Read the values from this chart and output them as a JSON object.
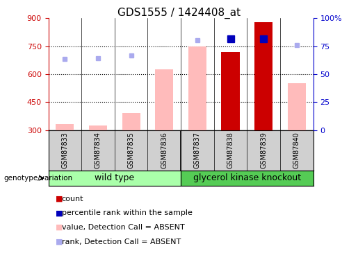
{
  "title": "GDS1555 / 1424408_at",
  "samples": [
    "GSM87833",
    "GSM87834",
    "GSM87835",
    "GSM87836",
    "GSM87837",
    "GSM87838",
    "GSM87839",
    "GSM87840"
  ],
  "bar_values": [
    330,
    325,
    390,
    625,
    750,
    720,
    880,
    550
  ],
  "bar_colors": [
    "#ffbbbb",
    "#ffbbbb",
    "#ffbbbb",
    "#ffbbbb",
    "#ffbbbb",
    "#cc0000",
    "#cc0000",
    "#ffbbbb"
  ],
  "rank_dots": [
    680,
    685,
    700,
    null,
    780,
    790,
    790,
    755
  ],
  "rank_dot_colors": [
    "#aaaaee",
    "#aaaaee",
    "#aaaaee",
    null,
    "#aaaaee",
    "#0000bb",
    "#0000bb",
    "#aaaaee"
  ],
  "rank_dot_sizes": [
    5,
    5,
    5,
    0,
    5,
    7,
    7,
    5
  ],
  "ylim_left": [
    300,
    900
  ],
  "ylim_right": [
    0,
    100
  ],
  "yticks_left": [
    300,
    450,
    600,
    750,
    900
  ],
  "yticks_right": [
    0,
    25,
    50,
    75,
    100
  ],
  "ytick_right_labels": [
    "0",
    "25",
    "50",
    "75",
    "100%"
  ],
  "wild_type_color": "#aaffaa",
  "gko_color": "#55cc55",
  "left_axis_color": "#cc0000",
  "right_axis_color": "#0000cc",
  "bar_bottom": 300,
  "legend_items": [
    {
      "color": "#cc0000",
      "label": "count"
    },
    {
      "color": "#0000bb",
      "label": "percentile rank within the sample"
    },
    {
      "color": "#ffbbbb",
      "label": "value, Detection Call = ABSENT"
    },
    {
      "color": "#aaaaee",
      "label": "rank, Detection Call = ABSENT"
    }
  ]
}
